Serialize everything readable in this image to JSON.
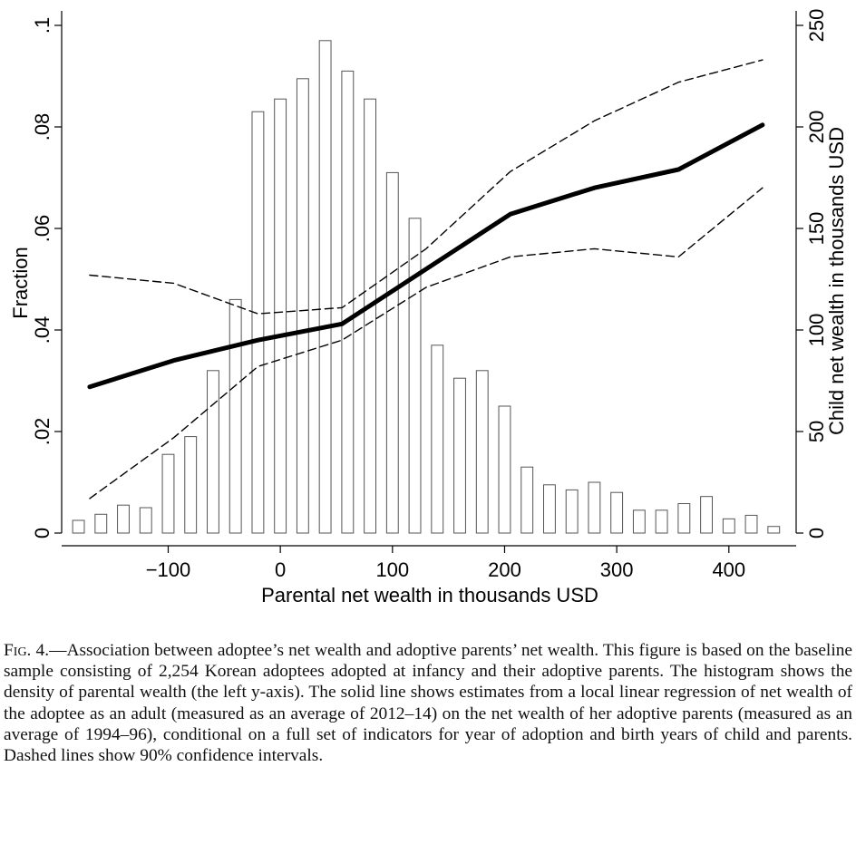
{
  "chart_data": {
    "type": "bar+line",
    "xlabel": "Parental net wealth in thousands USD",
    "ylabel_left": "Fraction",
    "ylabel_right": "Child net wealth in thousands USD",
    "xlim": [
      -195,
      460
    ],
    "ylim_left": [
      0,
      0.1
    ],
    "ylim_right": [
      0,
      250
    ],
    "x_ticks": [
      -100,
      0,
      100,
      200,
      300,
      400
    ],
    "x_tick_labels": [
      "−100",
      "0",
      "100",
      "200",
      "300",
      "400"
    ],
    "y_left_ticks": [
      0,
      0.02,
      0.04,
      0.06,
      0.08,
      0.1
    ],
    "y_left_tick_labels": [
      "0",
      ".02",
      ".04",
      ".06",
      ".08",
      ".1"
    ],
    "y_right_ticks": [
      0,
      50,
      100,
      150,
      200,
      250
    ],
    "y_right_tick_labels": [
      "0",
      "50",
      "100",
      "150",
      "200",
      "250"
    ],
    "grid": false,
    "histogram": {
      "bin_width": 20,
      "bins": [
        {
          "x": -180,
          "fraction": 0.0025
        },
        {
          "x": -160,
          "fraction": 0.0037
        },
        {
          "x": -140,
          "fraction": 0.0055
        },
        {
          "x": -120,
          "fraction": 0.005
        },
        {
          "x": -100,
          "fraction": 0.0155
        },
        {
          "x": -80,
          "fraction": 0.019
        },
        {
          "x": -60,
          "fraction": 0.032
        },
        {
          "x": -40,
          "fraction": 0.046
        },
        {
          "x": -20,
          "fraction": 0.083
        },
        {
          "x": 0,
          "fraction": 0.0855
        },
        {
          "x": 20,
          "fraction": 0.0895
        },
        {
          "x": 40,
          "fraction": 0.097
        },
        {
          "x": 60,
          "fraction": 0.091
        },
        {
          "x": 80,
          "fraction": 0.0855
        },
        {
          "x": 100,
          "fraction": 0.071
        },
        {
          "x": 120,
          "fraction": 0.062
        },
        {
          "x": 140,
          "fraction": 0.037
        },
        {
          "x": 160,
          "fraction": 0.0305
        },
        {
          "x": 180,
          "fraction": 0.032
        },
        {
          "x": 200,
          "fraction": 0.025
        },
        {
          "x": 220,
          "fraction": 0.013
        },
        {
          "x": 240,
          "fraction": 0.0095
        },
        {
          "x": 260,
          "fraction": 0.0085
        },
        {
          "x": 280,
          "fraction": 0.01
        },
        {
          "x": 300,
          "fraction": 0.008
        },
        {
          "x": 320,
          "fraction": 0.0045
        },
        {
          "x": 340,
          "fraction": 0.0045
        },
        {
          "x": 360,
          "fraction": 0.0058
        },
        {
          "x": 380,
          "fraction": 0.0072
        },
        {
          "x": 400,
          "fraction": 0.0028
        },
        {
          "x": 420,
          "fraction": 0.0035
        },
        {
          "x": 440,
          "fraction": 0.0013
        }
      ]
    },
    "series": [
      {
        "role": "estimate",
        "style": "solid-thick",
        "x": [
          -170,
          -95,
          -20,
          55,
          130,
          205,
          280,
          355,
          430
        ],
        "y": [
          72,
          85,
          95,
          103,
          130,
          157,
          170,
          179,
          201
        ]
      },
      {
        "role": "ci-upper",
        "style": "dashed",
        "x": [
          -170,
          -95,
          -20,
          55,
          130,
          205,
          280,
          355,
          430
        ],
        "y": [
          127,
          123,
          108,
          111,
          140,
          178,
          203,
          222,
          233
        ]
      },
      {
        "role": "ci-lower",
        "style": "dashed",
        "x": [
          -170,
          -95,
          -20,
          55,
          130,
          205,
          280,
          355,
          430
        ],
        "y": [
          17,
          47,
          82,
          95,
          121,
          136,
          140,
          136,
          170
        ]
      }
    ]
  },
  "caption": {
    "label": "Fig. 4.",
    "text": "—Association between adoptee’s net wealth and adoptive parents’ net wealth. This figure is based on the baseline sample consisting of 2,254 Korean adoptees adopted at infancy and their adoptive parents. The histogram shows the density of parental wealth (the left y-axis). The solid line shows estimates from a local linear regression of net wealth of the adoptee as an adult (measured as an average of 2012–14) on the net wealth of her adoptive parents (measured as an average of 1994–96), conditional on a full set of indicators for year of adoption and birth years of child and parents. Dashed lines show 90% confidence intervals."
  }
}
